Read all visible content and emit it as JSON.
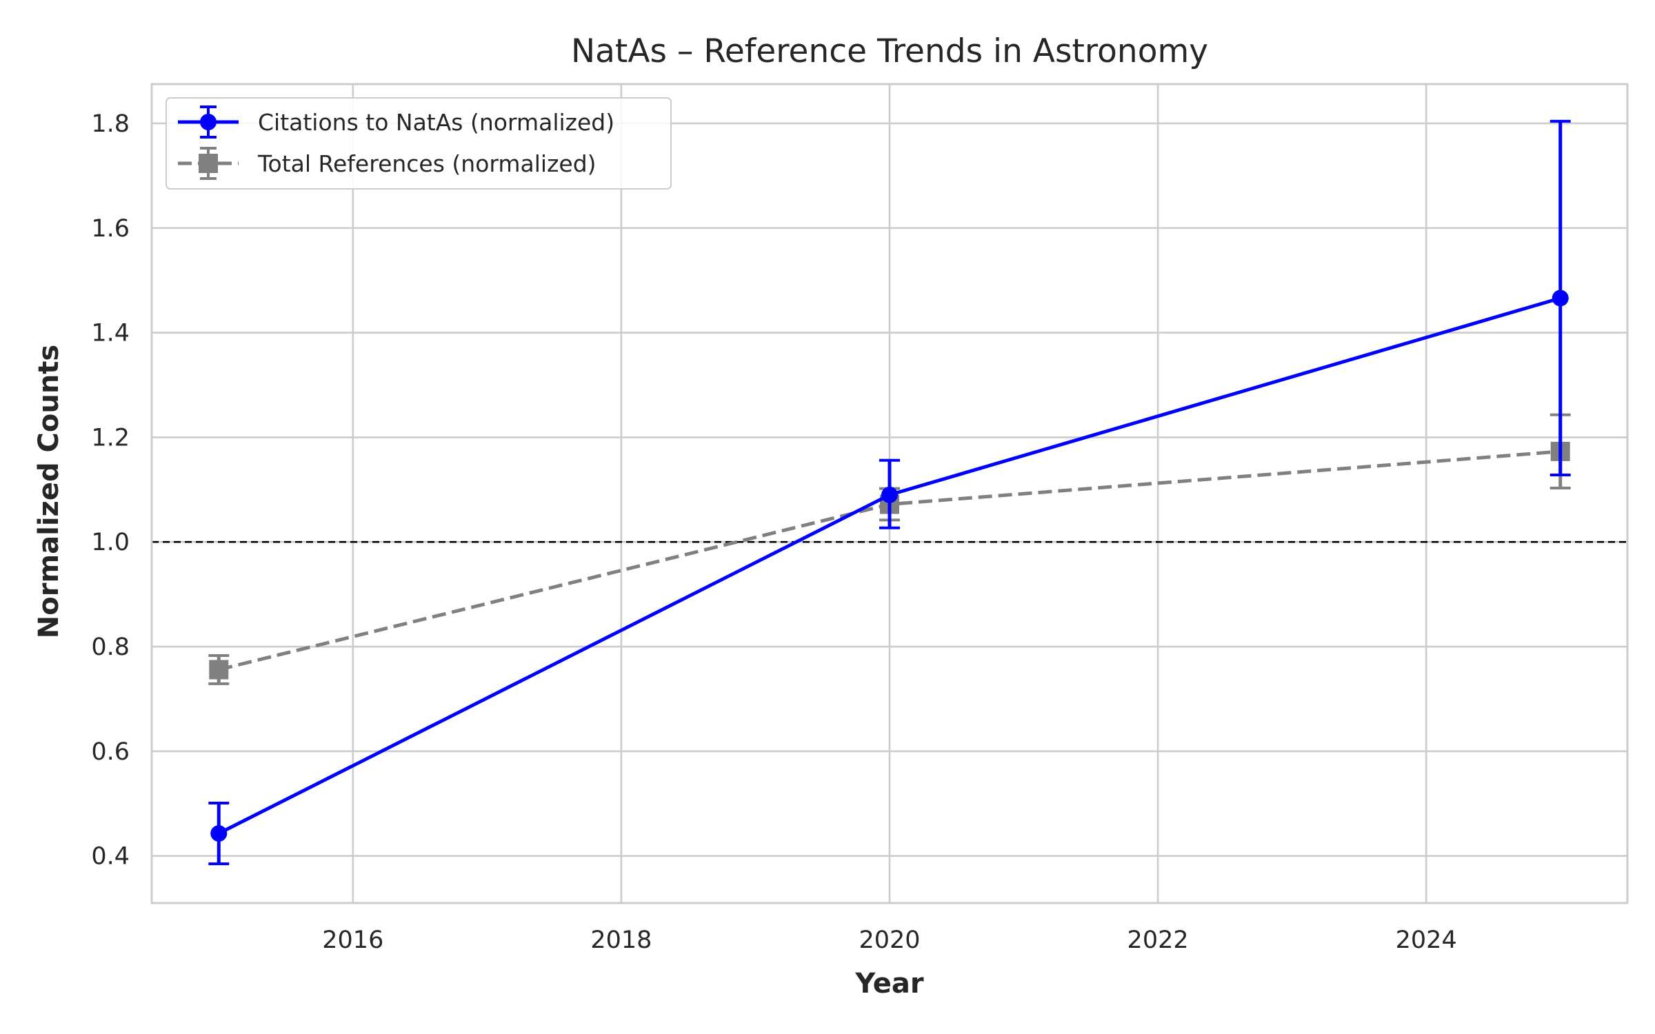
{
  "chart_data": {
    "type": "line",
    "title": "NatAs – Reference Trends in Astronomy",
    "xlabel": "Year",
    "ylabel": "Normalized Counts",
    "xlim": [
      2014.5,
      2025.5
    ],
    "ylim": [
      0.31,
      1.875
    ],
    "xticks": [
      2016,
      2018,
      2020,
      2022,
      2024
    ],
    "yticks": [
      0.4,
      0.6,
      0.8,
      1.0,
      1.2,
      1.4,
      1.6,
      1.8
    ],
    "xtick_labels": [
      "2016",
      "2018",
      "2020",
      "2022",
      "2024"
    ],
    "ytick_labels": [
      "0.4",
      "0.6",
      "0.8",
      "1.0",
      "1.2",
      "1.4",
      "1.6",
      "1.8"
    ],
    "grid": true,
    "legend_position": "top-left",
    "reference_line": {
      "y": 1.0,
      "color": "#000000",
      "style": "dashed"
    },
    "series": [
      {
        "name": "Citations to NatAs (normalized)",
        "color": "#0000ff",
        "marker": "circle",
        "line_style": "solid",
        "x": [
          2015,
          2020,
          2025
        ],
        "y": [
          0.443,
          1.09,
          1.466
        ],
        "y_err_low": [
          0.385,
          1.027,
          1.128
        ],
        "y_err_high": [
          0.501,
          1.156,
          1.804
        ]
      },
      {
        "name": "Total References (normalized)",
        "color": "#808080",
        "marker": "square",
        "line_style": "dashed",
        "x": [
          2015,
          2020,
          2025
        ],
        "y": [
          0.756,
          1.072,
          1.173
        ],
        "y_err_low": [
          0.729,
          1.042,
          1.103
        ],
        "y_err_high": [
          0.783,
          1.102,
          1.243
        ]
      }
    ]
  }
}
